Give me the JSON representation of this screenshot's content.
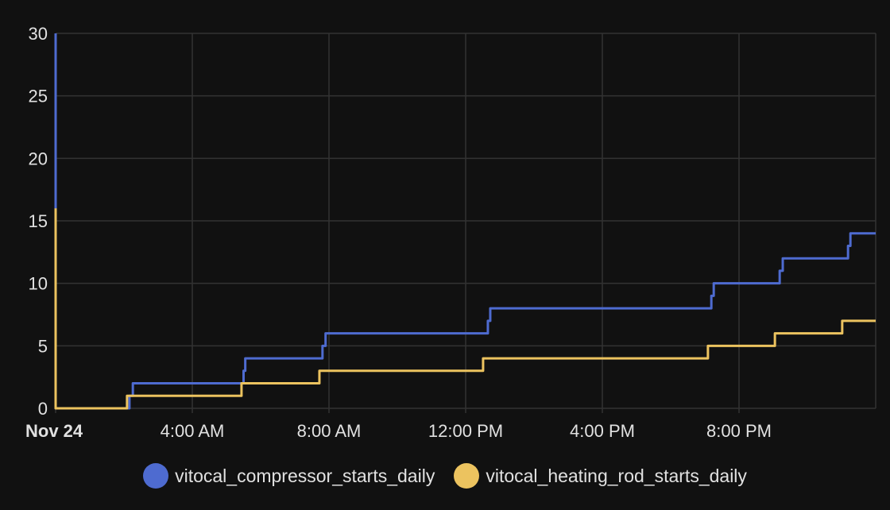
{
  "chart_data": {
    "type": "line",
    "step": true,
    "xlabel": "",
    "ylabel": "",
    "xlim": [
      0,
      24
    ],
    "ylim": [
      0,
      30
    ],
    "y_ticks": [
      0,
      5,
      10,
      15,
      20,
      25,
      30
    ],
    "x_ticks": [
      {
        "hour": 0,
        "label": "Nov 24",
        "bold": true
      },
      {
        "hour": 4,
        "label": "4:00 AM"
      },
      {
        "hour": 8,
        "label": "8:00 AM"
      },
      {
        "hour": 12,
        "label": "12:00 PM"
      },
      {
        "hour": 16,
        "label": "4:00 PM"
      },
      {
        "hour": 20,
        "label": "8:00 PM"
      }
    ],
    "grid": true,
    "legend_position": "bottom",
    "series": [
      {
        "name": "vitocal_compressor_starts_daily",
        "color": "#4e6bd0",
        "points": [
          [
            0,
            30
          ],
          [
            0,
            0
          ],
          [
            2.16,
            1
          ],
          [
            2.26,
            2
          ],
          [
            5.5,
            3
          ],
          [
            5.55,
            4
          ],
          [
            7.81,
            5
          ],
          [
            7.9,
            6
          ],
          [
            12.65,
            7
          ],
          [
            12.72,
            8
          ],
          [
            19.19,
            9
          ],
          [
            19.26,
            10
          ],
          [
            21.19,
            11
          ],
          [
            21.28,
            12
          ],
          [
            23.19,
            13
          ],
          [
            23.26,
            14
          ],
          [
            24,
            14
          ]
        ]
      },
      {
        "name": "vitocal_heating_rod_starts_daily",
        "color": "#ecc35f",
        "points": [
          [
            0,
            16
          ],
          [
            0,
            0
          ],
          [
            2.09,
            1
          ],
          [
            5.44,
            2
          ],
          [
            7.72,
            3
          ],
          [
            12.51,
            4
          ],
          [
            19.09,
            5
          ],
          [
            21.05,
            6
          ],
          [
            23.02,
            7
          ],
          [
            24,
            7
          ]
        ]
      }
    ]
  }
}
